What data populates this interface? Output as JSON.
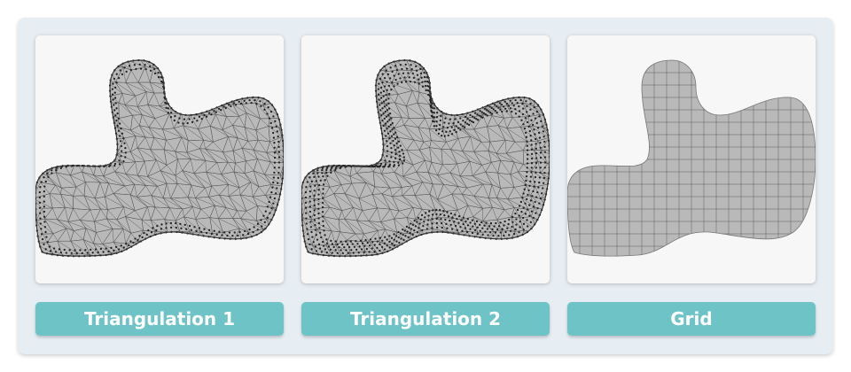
{
  "buttons": [
    {
      "label": "Triangulation 1"
    },
    {
      "label": "Triangulation 2"
    },
    {
      "label": "Grid"
    }
  ],
  "colors": {
    "accent": "#6ec3c7",
    "panel_bg": "#e6edf3",
    "card_bg": "#f7f7f7",
    "mesh_fill": "#b9b9b9",
    "mesh_line": "#555555",
    "node": "#222222"
  },
  "icons": [
    "triangulation-1-mesh-image",
    "triangulation-2-mesh-image",
    "grid-mesh-image"
  ]
}
